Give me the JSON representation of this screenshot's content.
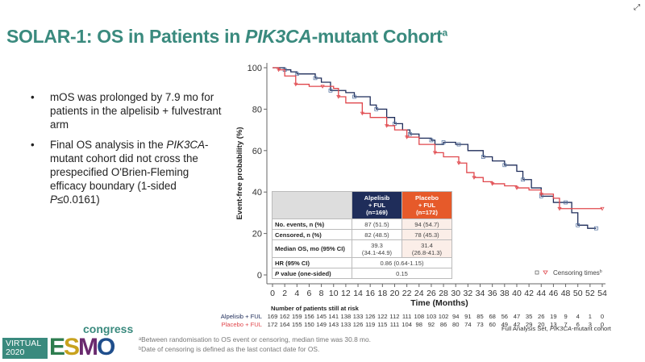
{
  "header": {
    "title_pre": "SOLAR-1: OS in Patients in ",
    "title_italic": "PIK3CA",
    "title_post": "-mutant Cohort",
    "title_sup": "a",
    "expand_icon": "expand-arrows-icon"
  },
  "bullets": [
    {
      "dot": "•",
      "parts": [
        {
          "t": "mOS was prolonged by 7.9 mo for patients in the alpelisib + fulvestrant arm",
          "i": false
        }
      ]
    },
    {
      "dot": "•",
      "parts": [
        {
          "t": "Final OS analysis in the ",
          "i": false
        },
        {
          "t": "PIK3CA",
          "i": true
        },
        {
          "t": "-mutant  cohort did not cross the prespecified O'Brien-Fleming efficacy boundary (1-sided ",
          "i": false
        },
        {
          "t": "P",
          "i": true
        },
        {
          "t": "≤0.0161)",
          "i": false
        }
      ]
    }
  ],
  "chart_data": {
    "type": "line",
    "step": true,
    "xlabel": "Time (Months)",
    "ylabel": "Event-free probability (%)",
    "xlim": [
      0,
      54
    ],
    "ylim": [
      0,
      100
    ],
    "xticks": [
      0,
      2,
      4,
      6,
      8,
      10,
      12,
      14,
      16,
      18,
      20,
      22,
      24,
      26,
      28,
      30,
      32,
      34,
      36,
      38,
      40,
      42,
      44,
      46,
      48,
      50,
      52,
      54
    ],
    "yticks": [
      0,
      20,
      40,
      60,
      80,
      100
    ],
    "grid": false,
    "colors": {
      "alpelisib": "#1f2d5a",
      "placebo": "#e0474c"
    },
    "series": [
      {
        "key": "alpelisib",
        "x": [
          0,
          2,
          3,
          4,
          6,
          7,
          8,
          9.5,
          12,
          13.4,
          16,
          17,
          18.7,
          20,
          21.3,
          22.5,
          24,
          26,
          26.6,
          28,
          30,
          30.5,
          32,
          34.5,
          36,
          38,
          40,
          41,
          42.4,
          44,
          46,
          48,
          49,
          50,
          51.6,
          53
        ],
        "y": [
          100,
          99,
          98,
          97,
          97,
          95,
          93,
          89,
          88,
          86,
          82,
          80,
          76,
          73,
          70,
          68,
          66,
          65,
          63,
          64,
          63,
          63,
          60,
          57,
          55,
          53,
          50,
          46,
          42,
          38,
          35,
          35,
          30,
          24,
          22.5,
          22.5
        ]
      },
      {
        "key": "placebo",
        "x": [
          0,
          1,
          2,
          3.8,
          6,
          8.2,
          10,
          10.8,
          12,
          14.7,
          16,
          18.7,
          20,
          22,
          24,
          26.6,
          28,
          30.5,
          31.8,
          33,
          34.5,
          36,
          38,
          40,
          42,
          44,
          46,
          47,
          50,
          54
        ],
        "y": [
          100,
          99,
          96,
          92,
          91,
          91,
          90,
          86,
          83,
          78,
          76,
          72,
          70,
          66.5,
          63,
          59,
          57,
          54,
          49.4,
          47,
          45,
          44,
          43,
          42,
          41,
          39,
          37,
          32,
          32,
          32
        ]
      }
    ],
    "legend": {
      "label": "Censoring times",
      "sup": "b",
      "placement": "bottom-right"
    },
    "table": {
      "headers": [
        {
          "l1": "Alpelisib",
          "l2": "+ FUL",
          "l3": "(n=169)"
        },
        {
          "l1": "Placebo",
          "l2": "+ FUL",
          "l3": "(n=172)"
        }
      ],
      "rows": [
        {
          "label": "No. events, n (%)",
          "a": "87 (51.5)",
          "p": "94 (54.7)"
        },
        {
          "label": "Censored, n (%)",
          "a": "82 (48.5)",
          "p": "78 (45.3)"
        },
        {
          "label": "Median OS, mo (95% CI)",
          "a": "39.3",
          "a2": "(34.1-44.9)",
          "p": "31.4",
          "p2": "(26.8-41.3)"
        }
      ],
      "hr": {
        "label": "HR (95% CI)",
        "value": "0.86 (0.64-1.15)"
      },
      "pval": {
        "label_i": "P",
        "label": " value (one-sided)",
        "value": "0.15"
      }
    },
    "risk": {
      "title": "Number of patients still at risk",
      "rows": [
        {
          "label": "Alpelisib + FUL",
          "color": "#1f2d5a",
          "values": [
            169,
            162,
            159,
            156,
            145,
            141,
            138,
            133,
            126,
            122,
            112,
            111,
            108,
            103,
            102,
            94,
            91,
            85,
            68,
            56,
            47,
            35,
            26,
            19,
            9,
            4,
            1,
            0
          ]
        },
        {
          "label": "Placebo + FUL",
          "color": "#e0474c",
          "values": [
            172,
            164,
            155,
            150,
            149,
            143,
            133,
            126,
            119,
            115,
            111,
            104,
            98,
            92,
            86,
            80,
            74,
            73,
            60,
            49,
            42,
            29,
            20,
            13,
            7,
            6,
            3,
            0
          ]
        }
      ]
    }
  },
  "footer": {
    "fas_pre": "Full Analysis Set, ",
    "fas_i": "PIK3CA",
    "fas_post": "-mutant  cohort",
    "note_a": "ᵃBetween randomisation to OS event or censoring, median time was 30.8 mo.",
    "note_b": "ᵇDate of censoring is defined as the last contact date for OS.",
    "logo": {
      "virtual": "VIRTUAL",
      "year": "2020",
      "esmo": "ESMO",
      "congress": "congress"
    }
  }
}
